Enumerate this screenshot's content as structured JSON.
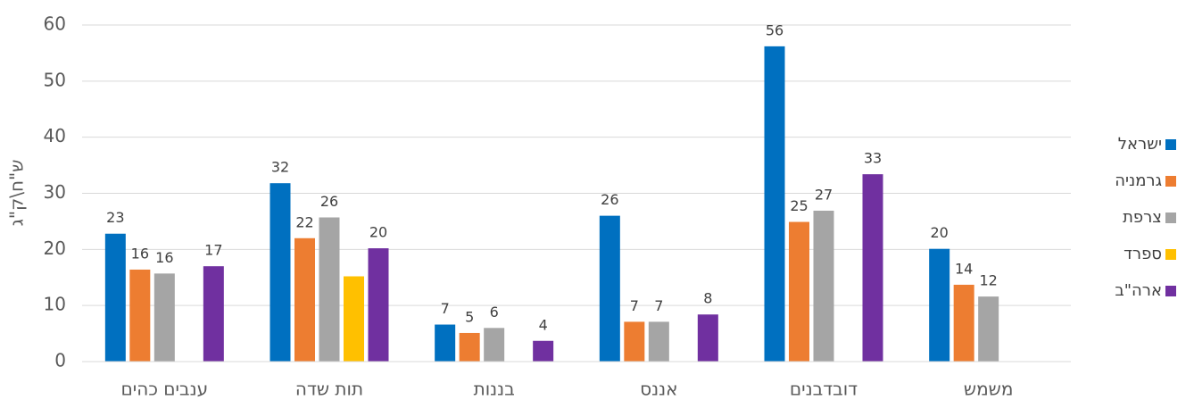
{
  "chart_data": {
    "type": "bar",
    "y_label": "ש\"ח\\ק\"ג",
    "categories": [
      "ענבים כהים",
      "תות שדה",
      "בננות",
      "אננס",
      "דובדבנים",
      "משמש"
    ],
    "series": [
      {
        "name": "ישראל",
        "color": "#0070c0",
        "values": [
          22.8,
          31.8,
          6.6,
          26,
          56.2,
          20.1
        ],
        "value_labels": [
          "23",
          "32",
          "7",
          "26",
          "56",
          "20"
        ]
      },
      {
        "name": "גרמניה",
        "color": "#ed7d31",
        "values": [
          16.4,
          22,
          5.1,
          7.1,
          24.9,
          13.7
        ],
        "value_labels": [
          "16",
          "22",
          "5",
          "7",
          "25",
          "14"
        ]
      },
      {
        "name": "צרפת",
        "color": "#a5a5a5",
        "values": [
          15.7,
          25.7,
          6,
          7.1,
          26.9,
          11.6
        ],
        "value_labels": [
          "16",
          "26",
          "6",
          "7",
          "27",
          "12"
        ]
      },
      {
        "name": "ספרד",
        "color": "#ffc000",
        "values": [
          null,
          15.2,
          null,
          null,
          null,
          null
        ]
      },
      {
        "name": "ארה\"ב",
        "color": "#7030a0",
        "values": [
          17,
          20.2,
          3.7,
          8.4,
          33.4,
          null
        ],
        "value_labels": [
          "17",
          "20",
          "4",
          "8",
          "33",
          null
        ]
      }
    ],
    "ylim": [
      0,
      60
    ],
    "yticks": [
      0,
      10,
      20,
      30,
      40,
      50,
      60
    ],
    "grid": true,
    "legend": "right"
  }
}
